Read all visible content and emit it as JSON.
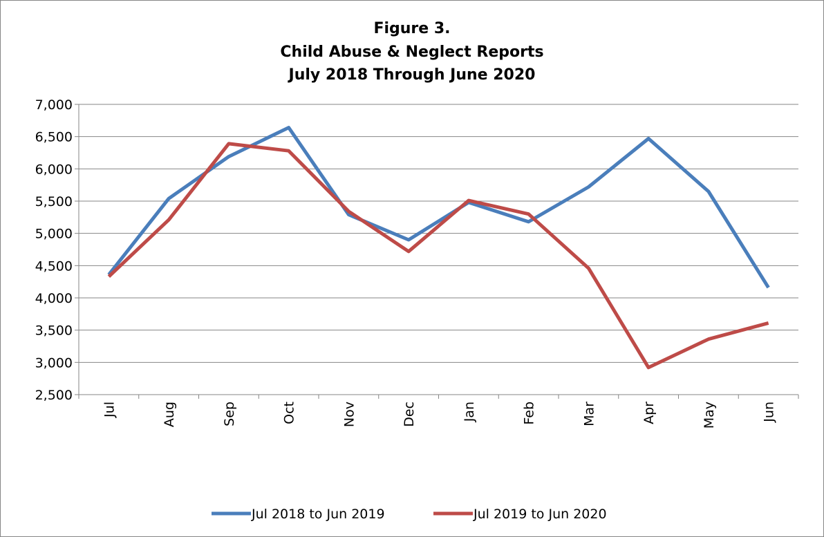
{
  "chart_data": {
    "type": "line",
    "title_lines": [
      "Figure 3.",
      "Child Abuse & Neglect Reports",
      "July 2018 Through June 2020"
    ],
    "xlabel": "",
    "ylabel": "",
    "categories": [
      "Jul",
      "Aug",
      "Sep",
      "Oct",
      "Nov",
      "Dec",
      "Jan",
      "Feb",
      "Mar",
      "Apr",
      "May",
      "Jun"
    ],
    "ylim": [
      2500,
      7000
    ],
    "yticks": [
      2500,
      3000,
      3500,
      4000,
      4500,
      5000,
      5500,
      6000,
      6500,
      7000
    ],
    "ytick_labels": [
      "2,500",
      "3,000",
      "3,500",
      "4,000",
      "4,500",
      "5,000",
      "5,500",
      "6,000",
      "6,500",
      "7,000"
    ],
    "grid": true,
    "legend_position": "bottom",
    "series": [
      {
        "name": "Jul 2018 to Jun 2019",
        "color": "#4a7ebb",
        "values": [
          4360,
          5540,
          6190,
          6640,
          5290,
          4900,
          5480,
          5180,
          5720,
          6470,
          5650,
          4160
        ]
      },
      {
        "name": "Jul 2019 to Jun 2020",
        "color": "#be4b48",
        "values": [
          4330,
          5210,
          6390,
          6280,
          5340,
          4720,
          5510,
          5300,
          4460,
          2920,
          3360,
          3610
        ]
      }
    ]
  }
}
